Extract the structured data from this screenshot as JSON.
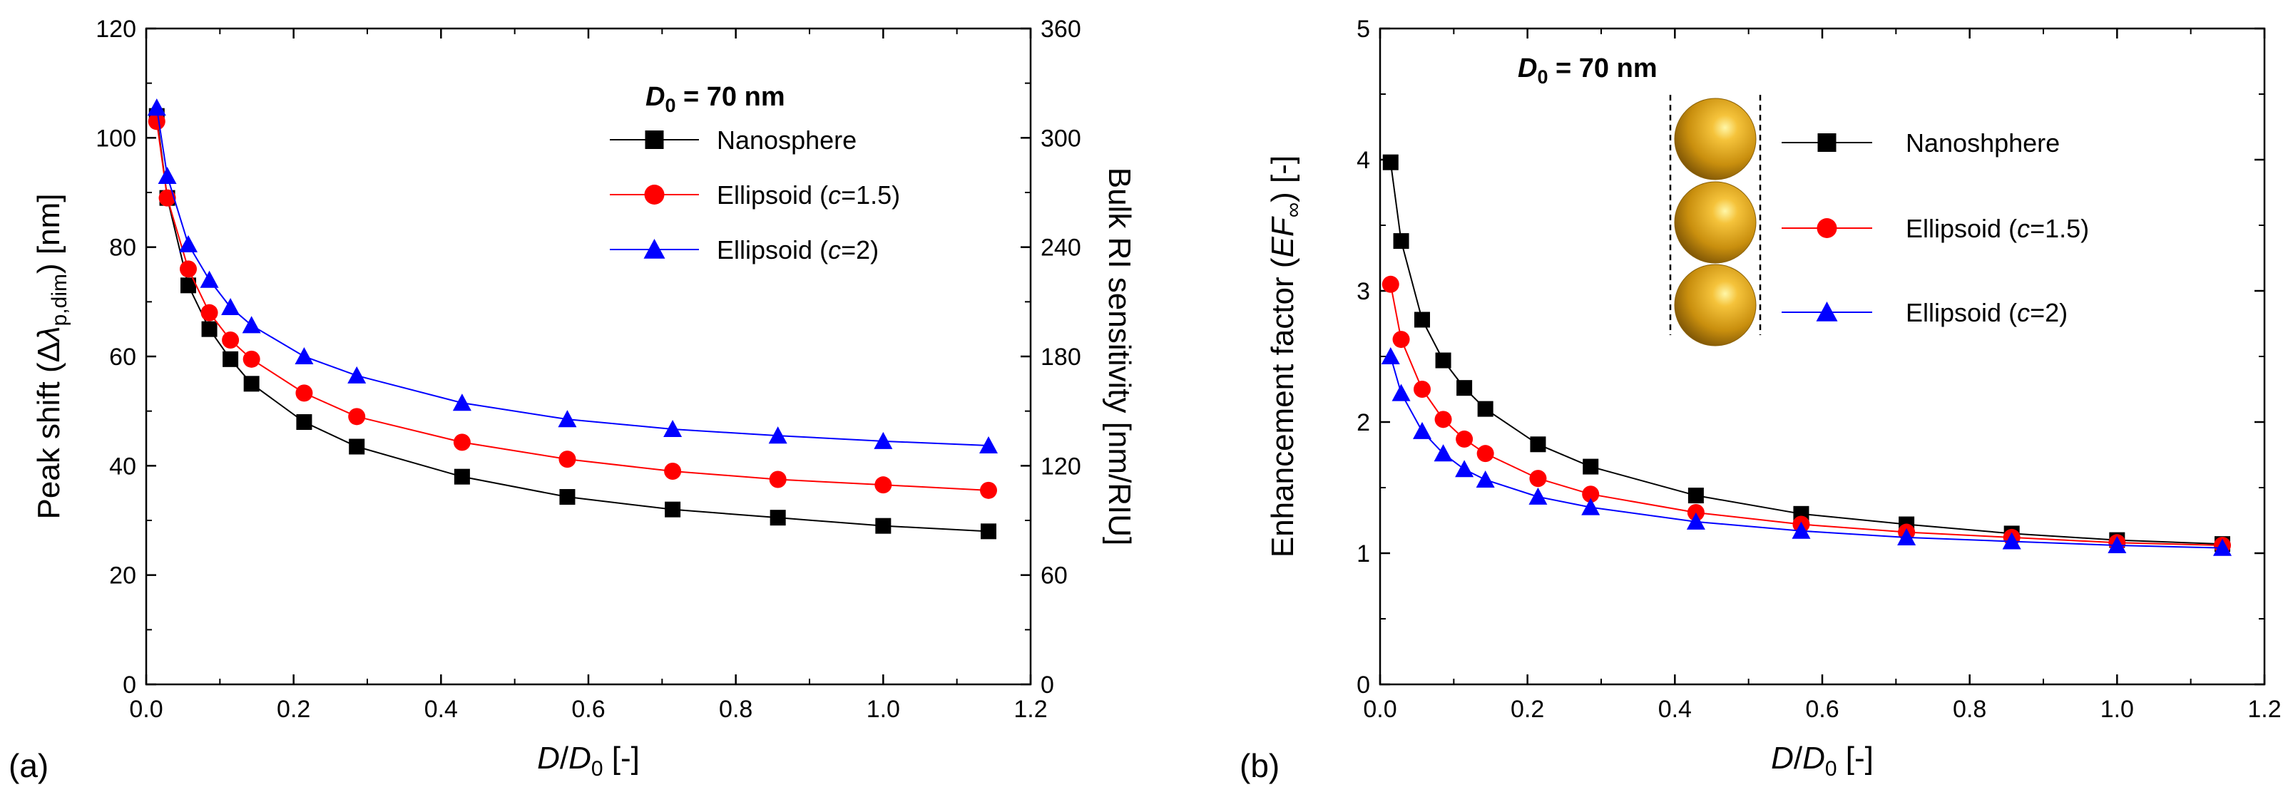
{
  "chart_data": [
    {
      "type": "line",
      "panel_label": "(a)",
      "xlabel": "D/D0 [-]",
      "xlabel_parts": {
        "D": "D",
        "slash": "/",
        "D0": "D",
        "sub0": "0",
        "unit": " [-]"
      },
      "ylabel": "Peak shift (Δλp,dim) [nm]",
      "ylabel_parts": {
        "pre": "Peak shift (Δ",
        "lambda": "λ",
        "sub": "p,dim",
        "post": ") [nm]"
      },
      "y2label": "Bulk RI sensitivity [nm/RIU]",
      "xlim": [
        0.0,
        1.2
      ],
      "ylim": [
        0,
        120
      ],
      "y2lim": [
        0,
        360
      ],
      "xticks": [
        "0.0",
        "0.2",
        "0.4",
        "0.6",
        "0.8",
        "1.0",
        "1.2"
      ],
      "yticks": [
        "0",
        "20",
        "40",
        "60",
        "80",
        "100",
        "120"
      ],
      "y2ticks": [
        "0",
        "60",
        "120",
        "180",
        "240",
        "300",
        "360"
      ],
      "grid": false,
      "legend_position": "top-right",
      "annotation": {
        "D": "D",
        "sub0": "0",
        "rest": " = 70 nm"
      },
      "x": [
        0.0143,
        0.0286,
        0.0571,
        0.0857,
        0.1143,
        0.1429,
        0.2143,
        0.2857,
        0.4286,
        0.5714,
        0.7143,
        0.8571,
        1.0,
        1.1429
      ],
      "series": [
        {
          "name": "Nanosphere",
          "name_parts": {
            "pre": "Nanosphere",
            "ital": "",
            "post": ""
          },
          "color": "#000000",
          "marker": "square",
          "values": [
            104,
            89,
            73,
            65,
            59.5,
            55,
            48,
            43.5,
            38,
            34.3,
            32,
            30.5,
            29,
            28
          ]
        },
        {
          "name": "Ellipsoid (c=1.5)",
          "name_parts": {
            "pre": "Ellipsoid (",
            "ital": "c",
            "post": "=1.5)"
          },
          "color": "#ff0000",
          "marker": "circle",
          "values": [
            103,
            89,
            76,
            68,
            63,
            59.5,
            53.3,
            49,
            44.3,
            41.2,
            39,
            37.5,
            36.5,
            35.5
          ]
        },
        {
          "name": "Ellipsoid (c=2)",
          "name_parts": {
            "pre": "Ellipsoid (",
            "ital": "c",
            "post": "=2)"
          },
          "color": "#0000ff",
          "marker": "triangle",
          "values": [
            105.5,
            93,
            80.5,
            74,
            69,
            65.7,
            60,
            56.5,
            51.5,
            48.5,
            46.7,
            45.5,
            44.5,
            43.7
          ]
        }
      ]
    },
    {
      "type": "line",
      "panel_label": "(b)",
      "xlabel": "D/D0 [-]",
      "xlabel_parts": {
        "D": "D",
        "slash": "/",
        "D0": "D",
        "sub0": "0",
        "unit": " [-]"
      },
      "ylabel": "Enhancement factor (EF∞) [-]",
      "ylabel_parts": {
        "pre": "Enhancement factor (",
        "ital": "EF",
        "sub": "∞",
        "post": ") [-]"
      },
      "xlim": [
        0.0,
        1.2
      ],
      "ylim": [
        0,
        5
      ],
      "xticks": [
        "0.0",
        "0.2",
        "0.4",
        "0.6",
        "0.8",
        "1.0",
        "1.2"
      ],
      "yticks": [
        "0",
        "1",
        "2",
        "3",
        "4",
        "5"
      ],
      "grid": false,
      "legend_position": "top-right",
      "annotation": {
        "D": "D",
        "sub0": "0",
        "rest": " = 70 nm"
      },
      "inset": "three stacked gold nanospheres between dashed lines",
      "x": [
        0.0143,
        0.0286,
        0.0571,
        0.0857,
        0.1143,
        0.1429,
        0.2143,
        0.2857,
        0.4286,
        0.5714,
        0.7143,
        0.8571,
        1.0,
        1.1429
      ],
      "series": [
        {
          "name": "Nanoshphere",
          "name_parts": {
            "pre": "Nanoshphere",
            "ital": "",
            "post": ""
          },
          "color": "#000000",
          "marker": "square",
          "values": [
            3.98,
            3.38,
            2.78,
            2.47,
            2.26,
            2.1,
            1.83,
            1.66,
            1.44,
            1.3,
            1.22,
            1.15,
            1.1,
            1.07
          ]
        },
        {
          "name": "Ellipsoid (c=1.5)",
          "name_parts": {
            "pre": "Ellipsoid (",
            "ital": "c",
            "post": "=1.5)"
          },
          "color": "#ff0000",
          "marker": "circle",
          "values": [
            3.05,
            2.63,
            2.25,
            2.02,
            1.87,
            1.76,
            1.57,
            1.45,
            1.31,
            1.22,
            1.16,
            1.12,
            1.08,
            1.06
          ]
        },
        {
          "name": "Ellipsoid (c=2)",
          "name_parts": {
            "pre": "Ellipsoid (",
            "ital": "c",
            "post": "=2)"
          },
          "color": "#0000ff",
          "marker": "triangle",
          "values": [
            2.5,
            2.22,
            1.93,
            1.76,
            1.64,
            1.56,
            1.43,
            1.35,
            1.24,
            1.17,
            1.12,
            1.09,
            1.06,
            1.04
          ]
        }
      ]
    }
  ]
}
